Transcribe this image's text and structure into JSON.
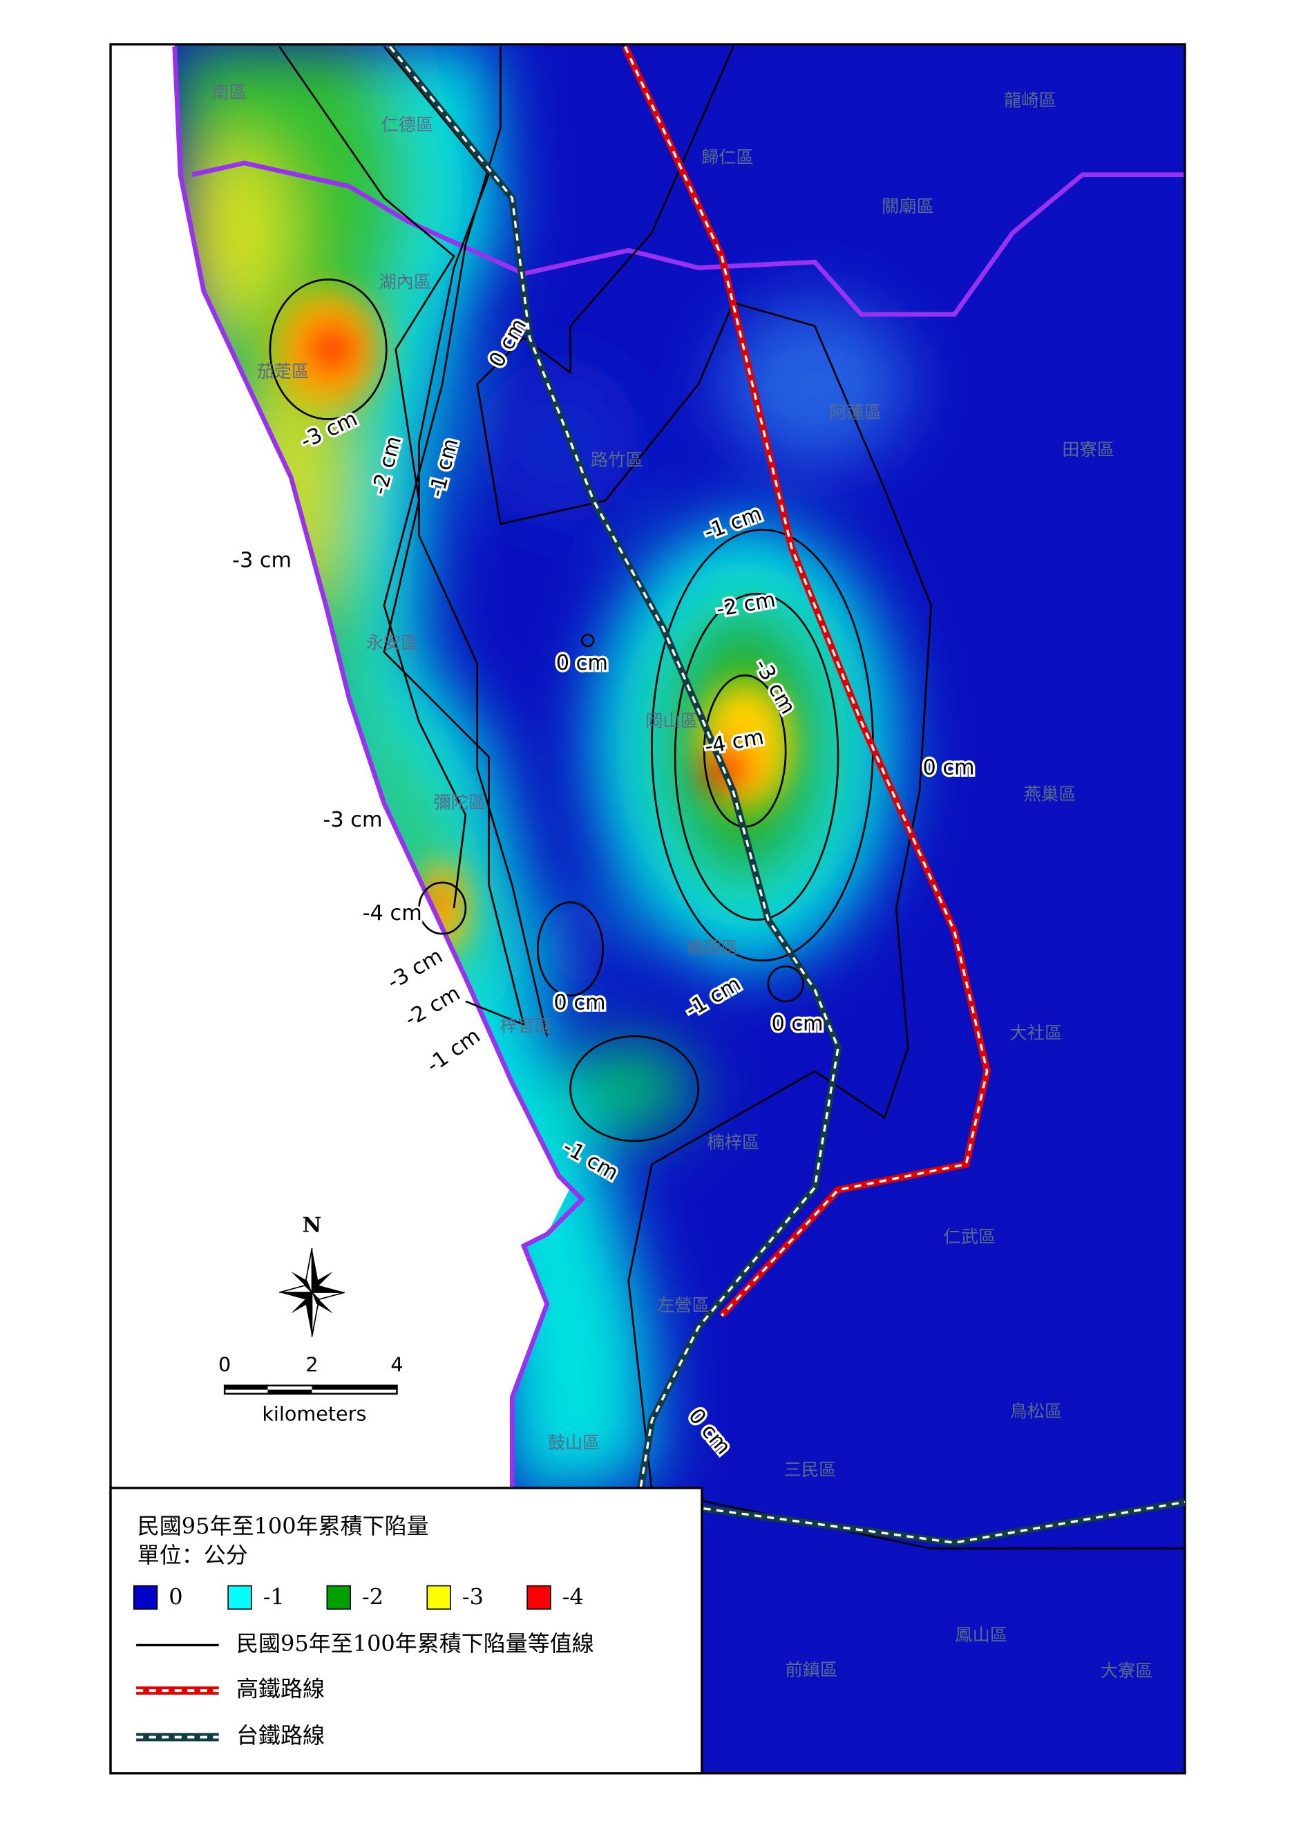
{
  "districts": [
    "南區",
    "仁德區",
    "龍崎區",
    "歸仁區",
    "關廟區",
    "湖內區",
    "茄萣區",
    "阿蓮區",
    "路竹區",
    "田寮區",
    "永安區",
    "岡山區",
    "燕巢區",
    "彌陀區",
    "橋頭區",
    "大社區",
    "梓官區",
    "楠梓區",
    "仁武區",
    "左營區",
    "鳥松區",
    "鼓山區",
    "三民區",
    "鳳山區",
    "前鎮區",
    "大寮區"
  ],
  "contour_labels": [
    "0 cm",
    "-3 cm",
    "-2 cm",
    "-1 cm",
    "-3 cm",
    "-1 cm",
    "-2 cm",
    "-3 cm",
    "0 cm",
    "-4 cm",
    "0 cm",
    "-3 cm",
    "-4 cm",
    "-3 cm",
    "-2 cm",
    "-1 cm",
    "0 cm",
    "-1 cm",
    "0 cm",
    "-1 cm",
    "0 cm"
  ],
  "compass": "N",
  "scale_bar": {
    "ticks": [
      "0",
      "2",
      "4"
    ],
    "unit": "kilometers"
  },
  "legend": {
    "title": "民國95年至100年累積下陷量",
    "unit": "單位：公分",
    "classes": [
      {
        "label": "0",
        "color": "#0000c8"
      },
      {
        "label": "-1",
        "color": "#00ffff"
      },
      {
        "label": "-2",
        "color": "#00a000"
      },
      {
        "label": "-3",
        "color": "#ffff00"
      },
      {
        "label": "-4",
        "color": "#ff0000"
      }
    ],
    "lines": [
      {
        "label": "民國95年至100年累積下陷量等值線",
        "color": "#000000",
        "style": "solid"
      },
      {
        "label": "高鐵路線",
        "color": "#e00000",
        "style": "dashed"
      },
      {
        "label": "台鐵路線",
        "color": "#123c44",
        "style": "dashed"
      }
    ]
  }
}
